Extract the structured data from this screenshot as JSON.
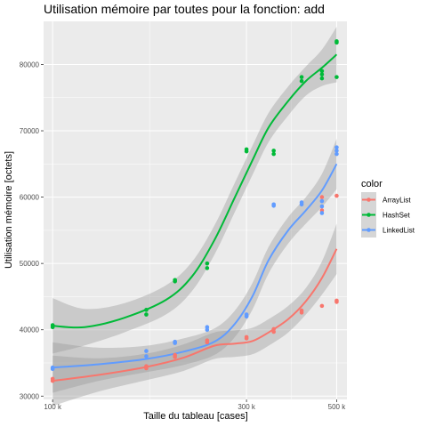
{
  "chart_data": {
    "type": "scatter",
    "title": "Utilisation mémoire par toutes pour la fonction: add",
    "xlabel": "Taille du tableau [cases]",
    "ylabel": "Utilisation mémoire [octets]",
    "x_scale": "log",
    "x_ticks": [
      {
        "value": 100000,
        "label": "100 k"
      },
      {
        "value": 300000,
        "label": "300 k"
      },
      {
        "value": 500000,
        "label": "500 k"
      }
    ],
    "y_ticks": [
      {
        "value": 30000,
        "label": "30000"
      },
      {
        "value": 40000,
        "label": "40000"
      },
      {
        "value": 50000,
        "label": "50000"
      },
      {
        "value": 60000,
        "label": "60000"
      },
      {
        "value": 70000,
        "label": "70000"
      },
      {
        "value": 80000,
        "label": "80000"
      }
    ],
    "xlim": [
      95000,
      530000
    ],
    "ylim": [
      29500,
      86500
    ],
    "grid": true,
    "legend": {
      "title": "color",
      "position": "right"
    },
    "smoothing": "loess with confidence band",
    "series": [
      {
        "name": "ArrayList",
        "color": "#F8766D",
        "points": [
          [
            100000,
            32300
          ],
          [
            100000,
            32600
          ],
          [
            170000,
            34200
          ],
          [
            170000,
            34500
          ],
          [
            200000,
            35900
          ],
          [
            200000,
            36200
          ],
          [
            240000,
            38100
          ],
          [
            240000,
            38400
          ],
          [
            300000,
            38700
          ],
          [
            300000,
            38900
          ],
          [
            350000,
            39700
          ],
          [
            350000,
            40100
          ],
          [
            410000,
            42600
          ],
          [
            410000,
            42900
          ],
          [
            460000,
            43600
          ],
          [
            460000,
            58000
          ],
          [
            460000,
            60000
          ],
          [
            500000,
            44200
          ],
          [
            500000,
            44400
          ],
          [
            500000,
            60200
          ]
        ],
        "trend": [
          [
            100000,
            32300
          ],
          [
            130000,
            33200
          ],
          [
            170000,
            34400
          ],
          [
            210000,
            35800
          ],
          [
            250000,
            37600
          ],
          [
            280000,
            37900
          ],
          [
            310000,
            38300
          ],
          [
            340000,
            39600
          ],
          [
            380000,
            41600
          ],
          [
            420000,
            44300
          ],
          [
            460000,
            47800
          ],
          [
            500000,
            52200
          ]
        ],
        "band_halfwidth": 2000
      },
      {
        "name": "HashSet",
        "color": "#00BA38",
        "points": [
          [
            100000,
            40400
          ],
          [
            100000,
            40700
          ],
          [
            170000,
            42300
          ],
          [
            170000,
            43000
          ],
          [
            200000,
            47300
          ],
          [
            200000,
            47500
          ],
          [
            240000,
            49300
          ],
          [
            240000,
            50000
          ],
          [
            300000,
            66900
          ],
          [
            300000,
            67200
          ],
          [
            350000,
            66500
          ],
          [
            350000,
            67000
          ],
          [
            410000,
            77500
          ],
          [
            410000,
            78100
          ],
          [
            460000,
            77900
          ],
          [
            460000,
            78500
          ],
          [
            460000,
            79000
          ],
          [
            500000,
            78100
          ],
          [
            500000,
            83300
          ],
          [
            500000,
            83500
          ]
        ],
        "trend": [
          [
            100000,
            40600
          ],
          [
            120000,
            40400
          ],
          [
            150000,
            41800
          ],
          [
            190000,
            44500
          ],
          [
            220000,
            48000
          ],
          [
            250000,
            53500
          ],
          [
            280000,
            59800
          ],
          [
            310000,
            65500
          ],
          [
            340000,
            70500
          ],
          [
            380000,
            74500
          ],
          [
            420000,
            77500
          ],
          [
            460000,
            79500
          ],
          [
            500000,
            81500
          ]
        ],
        "band_halfwidth": 2200
      },
      {
        "name": "LinkedList",
        "color": "#619CFF",
        "points": [
          [
            100000,
            34100
          ],
          [
            100000,
            34300
          ],
          [
            170000,
            36000
          ],
          [
            170000,
            36800
          ],
          [
            200000,
            38000
          ],
          [
            200000,
            38200
          ],
          [
            240000,
            40000
          ],
          [
            240000,
            40400
          ],
          [
            300000,
            42000
          ],
          [
            300000,
            42300
          ],
          [
            350000,
            58700
          ],
          [
            350000,
            58900
          ],
          [
            410000,
            58900
          ],
          [
            410000,
            59200
          ],
          [
            460000,
            57600
          ],
          [
            460000,
            58600
          ],
          [
            460000,
            59400
          ],
          [
            500000,
            66500
          ],
          [
            500000,
            67000
          ],
          [
            500000,
            67500
          ]
        ],
        "trend": [
          [
            100000,
            34300
          ],
          [
            130000,
            34800
          ],
          [
            170000,
            35600
          ],
          [
            210000,
            36700
          ],
          [
            250000,
            38200
          ],
          [
            280000,
            40800
          ],
          [
            310000,
            45000
          ],
          [
            340000,
            50500
          ],
          [
            380000,
            55000
          ],
          [
            420000,
            58000
          ],
          [
            460000,
            61000
          ],
          [
            500000,
            65000
          ]
        ],
        "band_halfwidth": 2000
      }
    ]
  }
}
